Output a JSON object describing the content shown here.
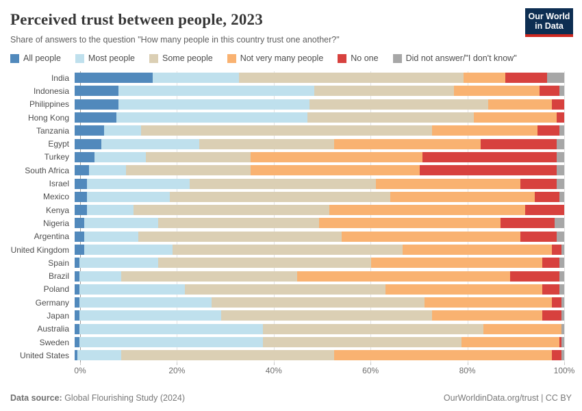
{
  "header": {
    "title": "Perceived trust between people, 2023",
    "subtitle": "Share of answers to the question \"How many people in this country trust one another?\"",
    "logo_line1": "Our World",
    "logo_line2": "in Data",
    "logo_bg": "#0d2e52",
    "logo_accent": "#cf2820"
  },
  "chart_data": {
    "type": "bar",
    "stacked": true,
    "orientation": "horizontal",
    "unit": "%",
    "xlim": [
      0,
      100
    ],
    "x_ticks": [
      {
        "label": "0%",
        "value": 0
      },
      {
        "label": "20%",
        "value": 20
      },
      {
        "label": "40%",
        "value": 40
      },
      {
        "label": "60%",
        "value": 60
      },
      {
        "label": "80%",
        "value": 80
      },
      {
        "label": "100%",
        "value": 100
      }
    ],
    "grid": true,
    "grid_values": [
      20,
      40,
      60,
      80,
      100
    ],
    "legend_position": "top",
    "categories": [
      "India",
      "Indonesia",
      "Philippines",
      "Hong Kong",
      "Tanzania",
      "Egypt",
      "Turkey",
      "South Africa",
      "Israel",
      "Mexico",
      "Kenya",
      "Nigeria",
      "Argentina",
      "United Kingdom",
      "Spain",
      "Brazil",
      "Poland",
      "Germany",
      "Japan",
      "Australia",
      "Sweden",
      "United States"
    ],
    "series": [
      {
        "key": "all-people",
        "name": "All people",
        "color": "#5189bc",
        "values": [
          16,
          9,
          9,
          8.5,
          6,
          5.5,
          4,
          3,
          2.5,
          2.5,
          2.5,
          2,
          2,
          2,
          1,
          1,
          1,
          1,
          1,
          1,
          1,
          0.5
        ]
      },
      {
        "key": "most-people",
        "name": "Most people",
        "color": "#bfe0ed",
        "values": [
          17.5,
          40,
          39,
          39,
          7.5,
          20,
          10.5,
          7.5,
          21,
          17,
          9.5,
          15,
          11,
          18,
          16,
          8.5,
          21.5,
          27,
          29,
          37.5,
          37.5,
          9
        ]
      },
      {
        "key": "some-people",
        "name": "Some people",
        "color": "#dbcfb4",
        "values": [
          46,
          28.5,
          36.5,
          34,
          59.5,
          27.5,
          21.5,
          25.5,
          38,
          45,
          40,
          33,
          41.5,
          47,
          43.5,
          36,
          41,
          43.5,
          43,
          45,
          40.5,
          43.5
        ]
      },
      {
        "key": "not-very-many-people",
        "name": "Not very many people",
        "color": "#f9b271",
        "values": [
          8.5,
          17.5,
          13,
          17,
          21.5,
          30,
          35,
          34.5,
          29.5,
          29.5,
          40,
          37,
          36.5,
          30.5,
          35,
          43.5,
          32,
          26,
          22.5,
          16,
          20,
          44.5
        ]
      },
      {
        "key": "no-one",
        "name": "No one",
        "color": "#d7413e",
        "values": [
          8.5,
          4,
          2.5,
          1.5,
          4.5,
          15.5,
          27.5,
          28,
          7.5,
          5,
          8,
          11,
          7.5,
          2,
          3.5,
          10,
          3.5,
          2,
          4,
          0,
          0.5,
          2
        ]
      },
      {
        "key": "did-not-answer",
        "name": "Did not answer/\"I don't know\"",
        "color": "#a7a7a7",
        "values": [
          3.5,
          1,
          0,
          0,
          1,
          1.5,
          1.5,
          1.5,
          1.5,
          1,
          0,
          2,
          1.5,
          0.5,
          1,
          1,
          1,
          0.5,
          0.5,
          0.5,
          0.5,
          0.5
        ]
      }
    ]
  },
  "footer": {
    "source_label": "Data source:",
    "source_value": " Global Flourishing Study (2024)",
    "credit": "OurWorldinData.org/trust | CC BY"
  }
}
